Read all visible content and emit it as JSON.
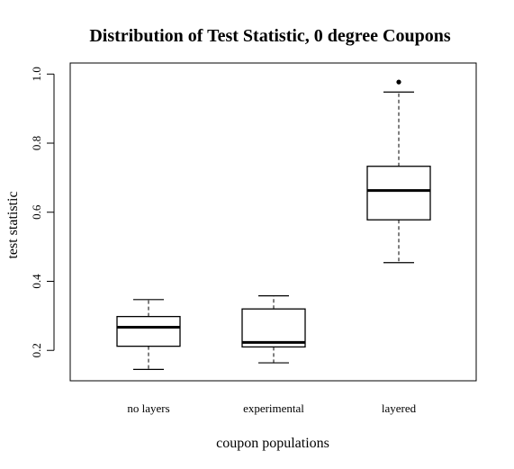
{
  "chart_data": {
    "type": "boxplot",
    "title": "Distribution of Test Statistic, 0 degree Coupons",
    "xlabel": "coupon populations",
    "ylabel": "test statistic",
    "ylim": [
      0.112,
      1.032
    ],
    "yticks": [
      0.2,
      0.4,
      0.6,
      0.8,
      1.0
    ],
    "ytick_labels": [
      "0.2",
      "0.4",
      "0.6",
      "0.8",
      "1.0"
    ],
    "grid": false,
    "categories": [
      "no layers",
      "experimental",
      "layered"
    ],
    "boxes": [
      {
        "category": "no layers",
        "whisker_low": 0.145,
        "q1": 0.212,
        "median": 0.267,
        "q3": 0.298,
        "whisker_high": 0.347,
        "outliers": []
      },
      {
        "category": "experimental",
        "whisker_low": 0.164,
        "q1": 0.21,
        "median": 0.223,
        "q3": 0.32,
        "whisker_high": 0.358,
        "outliers": []
      },
      {
        "category": "layered",
        "whisker_low": 0.454,
        "q1": 0.578,
        "median": 0.663,
        "q3": 0.733,
        "whisker_high": 0.948,
        "outliers": [
          0.977
        ]
      }
    ]
  }
}
